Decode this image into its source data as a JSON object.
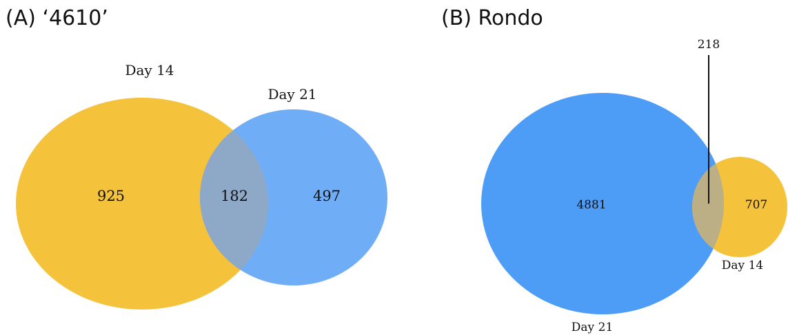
{
  "colors": {
    "yellow": "#f5c23c",
    "blue": "#4d9cf6",
    "blue_light": "#6fadf7",
    "overlap_a": "#8ea8c8",
    "overlap_b": "#bcaf86"
  },
  "panel_a": {
    "title": "(A) ‘4610’",
    "label_day14": "Day 14",
    "label_day21": "Day 21",
    "only_day14": "925",
    "shared": "182",
    "only_day21": "497"
  },
  "panel_b": {
    "title": "(B) Rondo",
    "label_day21": "Day 21",
    "label_day14": "Day 14",
    "only_day21": "4881",
    "shared": "218",
    "only_day14": "707"
  }
}
